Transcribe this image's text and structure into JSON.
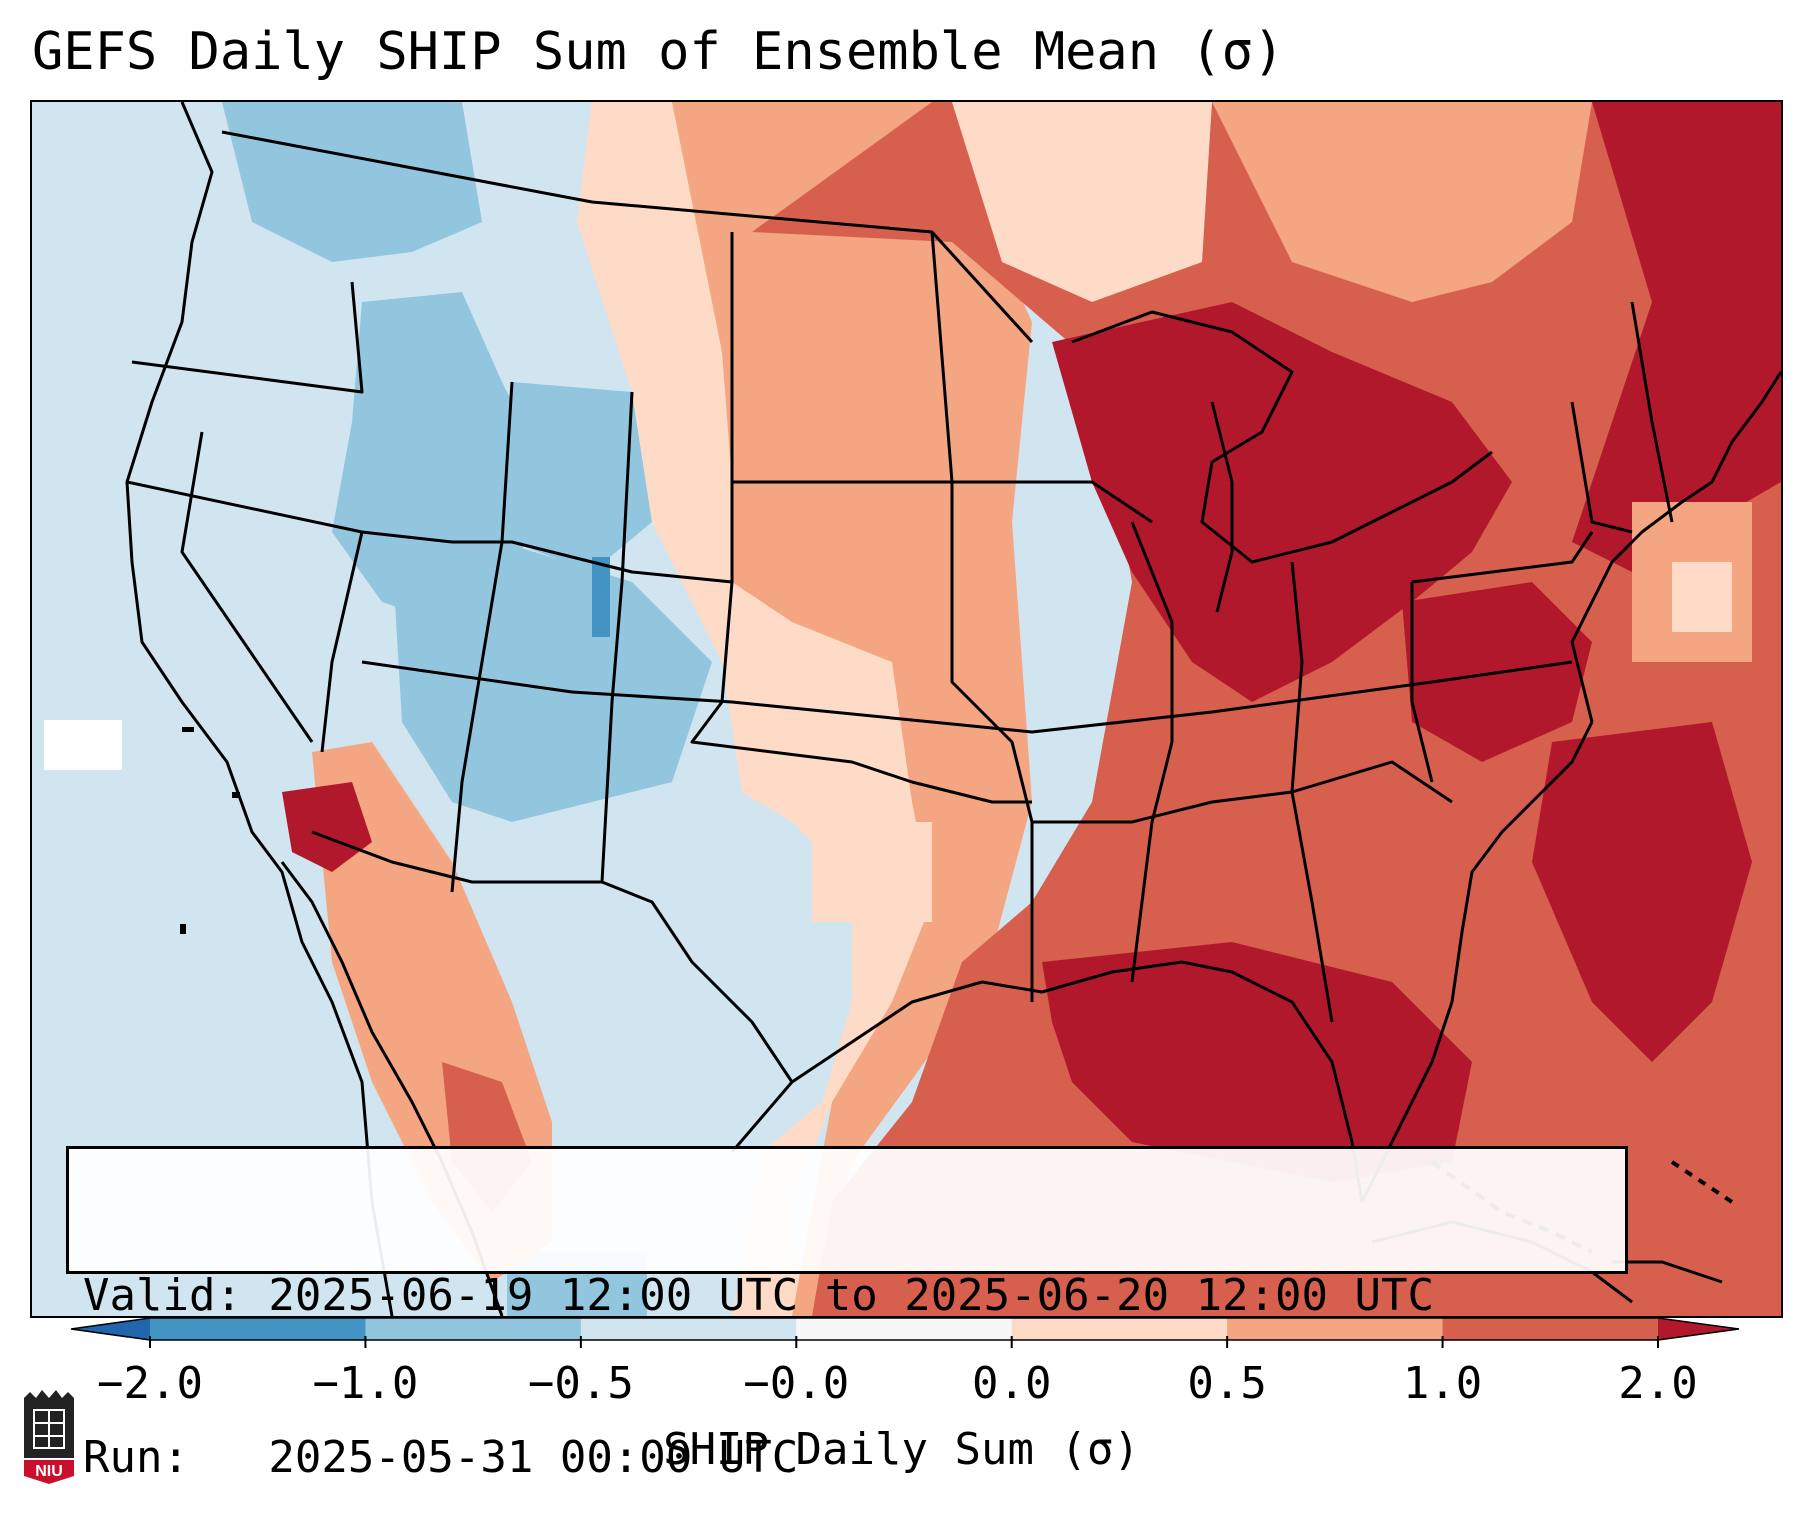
{
  "title": "GEFS Daily SHIP Sum of Ensemble Mean (σ)",
  "info": {
    "valid_line": "Valid: 2025-06-19 12:00 UTC to 2025-06-20 12:00 UTC",
    "run_line": "Run:   2025-05-31 00:00 UTC"
  },
  "colorbar": {
    "label": "SHIP Daily Sum (σ)",
    "tick_labels": [
      "−2.0",
      "−1.0",
      "−0.5",
      "−0.0",
      "0.0",
      "0.5",
      "1.0",
      "2.0"
    ],
    "colors": [
      "#2166ac",
      "#4393c3",
      "#92c5de",
      "#d1e5f0",
      "#f7f7f7",
      "#fddbc7",
      "#f4a582",
      "#d6604d",
      "#b2182b"
    ]
  },
  "logo": {
    "text": "NIU",
    "color": "#c8102e"
  }
}
